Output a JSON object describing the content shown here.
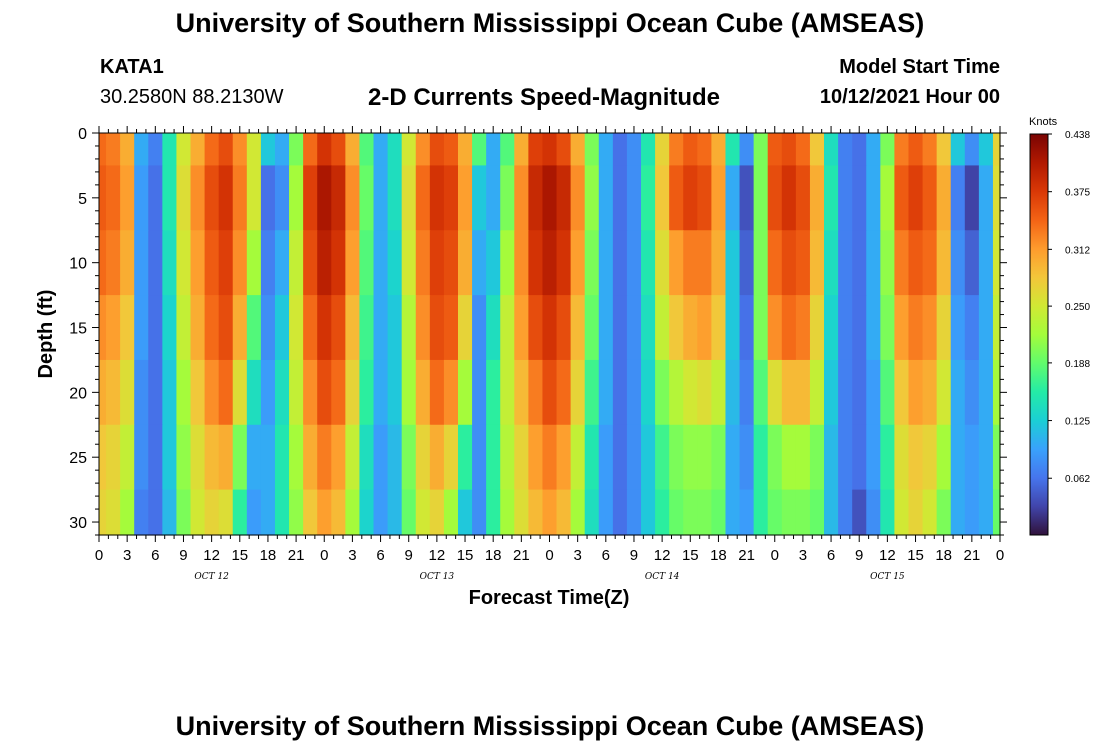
{
  "header": {
    "title": "University of Southern Mississippi Ocean Cube (AMSEAS)",
    "station_name": "KATA1",
    "station_coords": "30.2580N  88.2130W",
    "subtitle": "2-D Currents Speed-Magnitude",
    "model_start_label": "Model Start Time",
    "model_start_value": "10/12/2021 Hour 00"
  },
  "footer": {
    "title": "University of Southern Mississippi Ocean Cube (AMSEAS)"
  },
  "chart_data": {
    "type": "heatmap",
    "title": "2-D Currents Speed-Magnitude",
    "xlabel": "Forecast Time(Z)",
    "ylabel": "Depth (ft)",
    "xlim": [
      0,
      96
    ],
    "ylim": [
      31,
      0
    ],
    "x_ticks": [
      {
        "hour": 0,
        "label": "0"
      },
      {
        "hour": 3,
        "label": "3"
      },
      {
        "hour": 6,
        "label": "6"
      },
      {
        "hour": 9,
        "label": "9"
      },
      {
        "hour": 12,
        "label": "12"
      },
      {
        "hour": 15,
        "label": "15"
      },
      {
        "hour": 18,
        "label": "18"
      },
      {
        "hour": 21,
        "label": "21"
      },
      {
        "hour": 24,
        "label": "0"
      },
      {
        "hour": 27,
        "label": "3"
      },
      {
        "hour": 30,
        "label": "6"
      },
      {
        "hour": 33,
        "label": "9"
      },
      {
        "hour": 36,
        "label": "12"
      },
      {
        "hour": 39,
        "label": "15"
      },
      {
        "hour": 42,
        "label": "18"
      },
      {
        "hour": 45,
        "label": "21"
      },
      {
        "hour": 48,
        "label": "0"
      },
      {
        "hour": 51,
        "label": "3"
      },
      {
        "hour": 54,
        "label": "6"
      },
      {
        "hour": 57,
        "label": "9"
      },
      {
        "hour": 60,
        "label": "12"
      },
      {
        "hour": 63,
        "label": "15"
      },
      {
        "hour": 66,
        "label": "18"
      },
      {
        "hour": 69,
        "label": "21"
      },
      {
        "hour": 72,
        "label": "0"
      },
      {
        "hour": 75,
        "label": "3"
      },
      {
        "hour": 78,
        "label": "6"
      },
      {
        "hour": 81,
        "label": "9"
      },
      {
        "hour": 84,
        "label": "12"
      },
      {
        "hour": 87,
        "label": "15"
      },
      {
        "hour": 90,
        "label": "18"
      },
      {
        "hour": 93,
        "label": "21"
      },
      {
        "hour": 96,
        "label": "0"
      }
    ],
    "y_ticks": [
      0,
      5,
      10,
      15,
      20,
      25,
      30
    ],
    "day_labels": [
      {
        "hour": 12,
        "label": "OCT 12"
      },
      {
        "hour": 36,
        "label": "OCT 13"
      },
      {
        "hour": 60,
        "label": "OCT 14"
      },
      {
        "hour": 84,
        "label": "OCT 15"
      }
    ],
    "colorbar": {
      "label": "Knots",
      "min": 0.0,
      "max": 0.438,
      "tick_values": [
        0.062,
        0.125,
        0.188,
        0.25,
        0.312,
        0.375,
        0.438
      ],
      "tick_labels": [
        "0.062",
        "0.125",
        "0.188",
        "0.250",
        "0.312",
        "0.375",
        "0.438"
      ],
      "colors": [
        "#30123b",
        "#4145ab",
        "#4675ed",
        "#39a2fc",
        "#1bcfd4",
        "#24eca6",
        "#61fc6c",
        "#a4fc3b",
        "#d1e834",
        "#f3c63a",
        "#fe9b2d",
        "#f36315",
        "#d93806",
        "#b11901",
        "#7a0403"
      ]
    },
    "time_hours": [
      0,
      1.5,
      3,
      4.5,
      6,
      7.5,
      9,
      10.5,
      12,
      13.5,
      15,
      16.5,
      18,
      19.5,
      21,
      22.5,
      24,
      25.5,
      27,
      28.5,
      30,
      31.5,
      33,
      34.5,
      36,
      37.5,
      39,
      40.5,
      42,
      43.5,
      45,
      46.5,
      48,
      49.5,
      51,
      52.5,
      54,
      55.5,
      57,
      58.5,
      60,
      61.5,
      63,
      64.5,
      66,
      67.5,
      69,
      70.5,
      72,
      73.5,
      75,
      76.5,
      78,
      79.5,
      81,
      82.5,
      84,
      85.5,
      87,
      88.5,
      90,
      91.5,
      93,
      94.5,
      96
    ],
    "depths_ft": [
      0,
      5,
      10,
      15,
      20,
      25,
      30
    ],
    "speed_knots": [
      [
        0.34,
        0.33,
        0.3,
        0.1,
        0.07,
        0.15,
        0.25,
        0.3,
        0.34,
        0.36,
        0.32,
        0.25,
        0.12,
        0.1,
        0.2,
        0.34,
        0.38,
        0.36,
        0.3,
        0.18,
        0.1,
        0.14,
        0.25,
        0.32,
        0.36,
        0.35,
        0.3,
        0.18,
        0.1,
        0.18,
        0.3,
        0.37,
        0.38,
        0.36,
        0.3,
        0.2,
        0.1,
        0.06,
        0.08,
        0.15,
        0.27,
        0.33,
        0.35,
        0.34,
        0.3,
        0.15,
        0.08,
        0.2,
        0.35,
        0.36,
        0.34,
        0.28,
        0.14,
        0.07,
        0.06,
        0.1,
        0.2,
        0.33,
        0.35,
        0.33,
        0.28,
        0.12,
        0.08,
        0.12,
        0.27
      ],
      [
        0.35,
        0.34,
        0.31,
        0.09,
        0.06,
        0.15,
        0.26,
        0.32,
        0.36,
        0.38,
        0.33,
        0.25,
        0.06,
        0.08,
        0.22,
        0.37,
        0.41,
        0.39,
        0.32,
        0.19,
        0.1,
        0.14,
        0.26,
        0.34,
        0.38,
        0.37,
        0.31,
        0.12,
        0.1,
        0.2,
        0.32,
        0.39,
        0.41,
        0.39,
        0.32,
        0.21,
        0.1,
        0.06,
        0.08,
        0.16,
        0.28,
        0.35,
        0.37,
        0.36,
        0.31,
        0.1,
        0.04,
        0.2,
        0.36,
        0.38,
        0.36,
        0.3,
        0.15,
        0.07,
        0.06,
        0.1,
        0.22,
        0.35,
        0.37,
        0.35,
        0.3,
        0.07,
        0.03,
        0.1,
        0.26
      ],
      [
        0.34,
        0.33,
        0.3,
        0.09,
        0.06,
        0.14,
        0.25,
        0.31,
        0.35,
        0.37,
        0.32,
        0.22,
        0.07,
        0.1,
        0.24,
        0.36,
        0.4,
        0.38,
        0.31,
        0.18,
        0.1,
        0.13,
        0.25,
        0.33,
        0.37,
        0.36,
        0.3,
        0.1,
        0.12,
        0.22,
        0.32,
        0.38,
        0.4,
        0.38,
        0.31,
        0.2,
        0.1,
        0.06,
        0.08,
        0.15,
        0.26,
        0.31,
        0.33,
        0.33,
        0.3,
        0.12,
        0.05,
        0.2,
        0.34,
        0.36,
        0.35,
        0.29,
        0.14,
        0.07,
        0.06,
        0.1,
        0.21,
        0.33,
        0.35,
        0.34,
        0.29,
        0.08,
        0.05,
        0.1,
        0.25
      ],
      [
        0.32,
        0.31,
        0.28,
        0.09,
        0.06,
        0.13,
        0.24,
        0.3,
        0.34,
        0.36,
        0.3,
        0.18,
        0.08,
        0.12,
        0.25,
        0.34,
        0.38,
        0.36,
        0.29,
        0.17,
        0.1,
        0.12,
        0.23,
        0.32,
        0.36,
        0.35,
        0.27,
        0.08,
        0.14,
        0.24,
        0.31,
        0.36,
        0.38,
        0.36,
        0.29,
        0.19,
        0.1,
        0.06,
        0.08,
        0.14,
        0.24,
        0.28,
        0.3,
        0.31,
        0.28,
        0.12,
        0.06,
        0.2,
        0.32,
        0.34,
        0.33,
        0.27,
        0.13,
        0.07,
        0.06,
        0.1,
        0.2,
        0.31,
        0.33,
        0.32,
        0.27,
        0.09,
        0.07,
        0.1,
        0.24
      ],
      [
        0.3,
        0.29,
        0.26,
        0.08,
        0.06,
        0.12,
        0.22,
        0.28,
        0.32,
        0.34,
        0.26,
        0.14,
        0.09,
        0.14,
        0.24,
        0.32,
        0.36,
        0.34,
        0.27,
        0.16,
        0.1,
        0.12,
        0.22,
        0.3,
        0.34,
        0.32,
        0.22,
        0.08,
        0.16,
        0.24,
        0.29,
        0.33,
        0.36,
        0.34,
        0.27,
        0.17,
        0.1,
        0.06,
        0.08,
        0.13,
        0.2,
        0.23,
        0.25,
        0.26,
        0.24,
        0.11,
        0.07,
        0.18,
        0.26,
        0.29,
        0.29,
        0.24,
        0.12,
        0.07,
        0.06,
        0.09,
        0.18,
        0.28,
        0.31,
        0.3,
        0.25,
        0.1,
        0.08,
        0.1,
        0.22
      ],
      [
        0.28,
        0.27,
        0.24,
        0.08,
        0.06,
        0.12,
        0.21,
        0.26,
        0.29,
        0.3,
        0.2,
        0.1,
        0.1,
        0.15,
        0.22,
        0.3,
        0.33,
        0.31,
        0.24,
        0.14,
        0.09,
        0.11,
        0.2,
        0.27,
        0.3,
        0.27,
        0.16,
        0.08,
        0.16,
        0.23,
        0.27,
        0.31,
        0.33,
        0.31,
        0.24,
        0.15,
        0.09,
        0.06,
        0.08,
        0.12,
        0.17,
        0.2,
        0.21,
        0.21,
        0.2,
        0.1,
        0.08,
        0.16,
        0.2,
        0.22,
        0.22,
        0.2,
        0.11,
        0.07,
        0.06,
        0.09,
        0.16,
        0.26,
        0.28,
        0.27,
        0.22,
        0.1,
        0.09,
        0.1,
        0.2
      ],
      [
        0.27,
        0.26,
        0.22,
        0.07,
        0.06,
        0.11,
        0.2,
        0.25,
        0.27,
        0.26,
        0.16,
        0.09,
        0.1,
        0.15,
        0.21,
        0.28,
        0.31,
        0.29,
        0.22,
        0.13,
        0.09,
        0.11,
        0.19,
        0.25,
        0.27,
        0.22,
        0.12,
        0.08,
        0.16,
        0.22,
        0.26,
        0.29,
        0.31,
        0.29,
        0.22,
        0.14,
        0.09,
        0.06,
        0.08,
        0.12,
        0.16,
        0.19,
        0.2,
        0.2,
        0.19,
        0.1,
        0.09,
        0.16,
        0.19,
        0.2,
        0.2,
        0.19,
        0.11,
        0.07,
        0.04,
        0.08,
        0.15,
        0.25,
        0.27,
        0.25,
        0.2,
        0.1,
        0.09,
        0.1,
        0.19
      ]
    ]
  }
}
